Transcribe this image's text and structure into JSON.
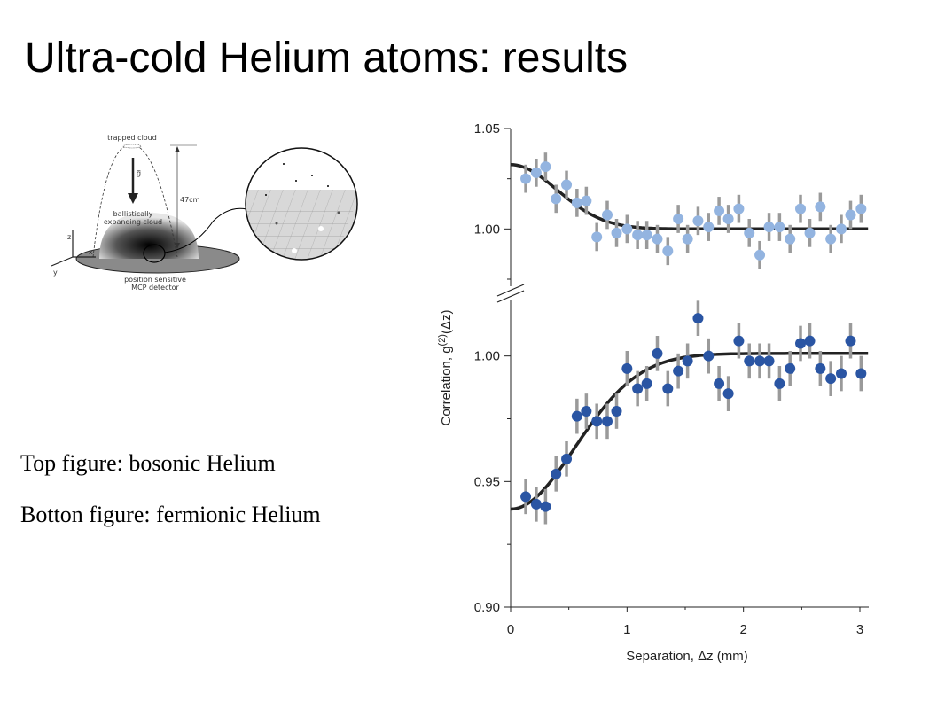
{
  "slide": {
    "title": "Ultra-cold Helium atoms: results",
    "caption_top": "Top figure: bosonic Helium",
    "caption_bottom": "Botton figure: fermionic Helium"
  },
  "diagram": {
    "labels": {
      "trapped": "trapped cloud",
      "gravity": "g̅",
      "height": "47cm",
      "ballistic1": "ballistically",
      "ballistic2": "expanding cloud",
      "detector1": "position sensitive",
      "detector2": "MCP detector",
      "z": "z",
      "x": "x",
      "y": "y"
    }
  },
  "chart_data": {
    "type": "scatter",
    "xlabel": "Separation, Δz (mm)",
    "ylabel": "Correlation, g(2)(Δz)",
    "ylabel_parts": {
      "main": "Correlation, g",
      "sup": "(2)",
      "tail": "(Δz)"
    },
    "xlim": [
      0,
      3.07
    ],
    "x_ticks": [
      0,
      1,
      2,
      3
    ],
    "x_tick_labels": [
      "0",
      "1",
      "2",
      "3"
    ],
    "colors": {
      "bosonic": "#93b4e0",
      "fermionic": "#2a55a3",
      "error_bar": "#9a9a9a",
      "fit": "#222222"
    },
    "series": [
      {
        "ylim": [
          0.975,
          1.05
        ],
        "y_ticks": [
          1.0,
          1.05
        ],
        "y_tick_labels": [
          "1.00",
          "1.05"
        ],
        "points": [
          {
            "x": 0.13,
            "y": 1.025,
            "err": 0.007
          },
          {
            "x": 0.22,
            "y": 1.028,
            "err": 0.007
          },
          {
            "x": 0.3,
            "y": 1.031,
            "err": 0.007
          },
          {
            "x": 0.39,
            "y": 1.015,
            "err": 0.007
          },
          {
            "x": 0.48,
            "y": 1.022,
            "err": 0.007
          },
          {
            "x": 0.57,
            "y": 1.013,
            "err": 0.007
          },
          {
            "x": 0.65,
            "y": 1.014,
            "err": 0.007
          },
          {
            "x": 0.74,
            "y": 0.996,
            "err": 0.007
          },
          {
            "x": 0.83,
            "y": 1.007,
            "err": 0.007
          },
          {
            "x": 0.91,
            "y": 0.998,
            "err": 0.007
          },
          {
            "x": 1.0,
            "y": 1.0,
            "err": 0.007
          },
          {
            "x": 1.09,
            "y": 0.997,
            "err": 0.007
          },
          {
            "x": 1.17,
            "y": 0.997,
            "err": 0.007
          },
          {
            "x": 1.26,
            "y": 0.995,
            "err": 0.007
          },
          {
            "x": 1.35,
            "y": 0.989,
            "err": 0.007
          },
          {
            "x": 1.44,
            "y": 1.005,
            "err": 0.007
          },
          {
            "x": 1.52,
            "y": 0.995,
            "err": 0.007
          },
          {
            "x": 1.61,
            "y": 1.004,
            "err": 0.007
          },
          {
            "x": 1.7,
            "y": 1.001,
            "err": 0.007
          },
          {
            "x": 1.79,
            "y": 1.009,
            "err": 0.007
          },
          {
            "x": 1.87,
            "y": 1.005,
            "err": 0.007
          },
          {
            "x": 1.96,
            "y": 1.01,
            "err": 0.007
          },
          {
            "x": 2.05,
            "y": 0.998,
            "err": 0.007
          },
          {
            "x": 2.14,
            "y": 0.987,
            "err": 0.007
          },
          {
            "x": 2.22,
            "y": 1.001,
            "err": 0.007
          },
          {
            "x": 2.31,
            "y": 1.001,
            "err": 0.007
          },
          {
            "x": 2.4,
            "y": 0.995,
            "err": 0.007
          },
          {
            "x": 2.49,
            "y": 1.01,
            "err": 0.007
          },
          {
            "x": 2.57,
            "y": 0.998,
            "err": 0.007
          },
          {
            "x": 2.66,
            "y": 1.011,
            "err": 0.007
          },
          {
            "x": 2.75,
            "y": 0.995,
            "err": 0.007
          },
          {
            "x": 2.84,
            "y": 1.0,
            "err": 0.007
          },
          {
            "x": 2.92,
            "y": 1.007,
            "err": 0.007
          },
          {
            "x": 3.01,
            "y": 1.01,
            "err": 0.007
          }
        ],
        "fit": {
          "baseline": 1.0,
          "amplitude": 0.032,
          "width": 0.4
        }
      },
      {
        "ylim": [
          0.9,
          1.02
        ],
        "y_ticks": [
          0.9,
          0.95,
          1.0
        ],
        "y_tick_labels": [
          "0.90",
          "0.95",
          "1.00"
        ],
        "points": [
          {
            "x": 0.13,
            "y": 0.944,
            "err": 0.007
          },
          {
            "x": 0.22,
            "y": 0.941,
            "err": 0.007
          },
          {
            "x": 0.3,
            "y": 0.94,
            "err": 0.007
          },
          {
            "x": 0.39,
            "y": 0.953,
            "err": 0.007
          },
          {
            "x": 0.48,
            "y": 0.959,
            "err": 0.007
          },
          {
            "x": 0.57,
            "y": 0.976,
            "err": 0.007
          },
          {
            "x": 0.65,
            "y": 0.978,
            "err": 0.007
          },
          {
            "x": 0.74,
            "y": 0.974,
            "err": 0.007
          },
          {
            "x": 0.83,
            "y": 0.974,
            "err": 0.007
          },
          {
            "x": 0.91,
            "y": 0.978,
            "err": 0.007
          },
          {
            "x": 1.0,
            "y": 0.995,
            "err": 0.007
          },
          {
            "x": 1.09,
            "y": 0.987,
            "err": 0.007
          },
          {
            "x": 1.17,
            "y": 0.989,
            "err": 0.007
          },
          {
            "x": 1.26,
            "y": 1.001,
            "err": 0.007
          },
          {
            "x": 1.35,
            "y": 0.987,
            "err": 0.007
          },
          {
            "x": 1.44,
            "y": 0.994,
            "err": 0.007
          },
          {
            "x": 1.52,
            "y": 0.998,
            "err": 0.007
          },
          {
            "x": 1.61,
            "y": 1.015,
            "err": 0.007
          },
          {
            "x": 1.7,
            "y": 1.0,
            "err": 0.007
          },
          {
            "x": 1.79,
            "y": 0.989,
            "err": 0.007
          },
          {
            "x": 1.87,
            "y": 0.985,
            "err": 0.007
          },
          {
            "x": 1.96,
            "y": 1.006,
            "err": 0.007
          },
          {
            "x": 2.05,
            "y": 0.998,
            "err": 0.007
          },
          {
            "x": 2.14,
            "y": 0.998,
            "err": 0.007
          },
          {
            "x": 2.22,
            "y": 0.998,
            "err": 0.007
          },
          {
            "x": 2.31,
            "y": 0.989,
            "err": 0.007
          },
          {
            "x": 2.4,
            "y": 0.995,
            "err": 0.007
          },
          {
            "x": 2.49,
            "y": 1.005,
            "err": 0.007
          },
          {
            "x": 2.57,
            "y": 1.006,
            "err": 0.007
          },
          {
            "x": 2.66,
            "y": 0.995,
            "err": 0.007
          },
          {
            "x": 2.75,
            "y": 0.991,
            "err": 0.007
          },
          {
            "x": 2.84,
            "y": 0.993,
            "err": 0.007
          },
          {
            "x": 2.92,
            "y": 1.006,
            "err": 0.007
          },
          {
            "x": 3.01,
            "y": 0.993,
            "err": 0.007
          }
        ],
        "fit": {
          "baseline": 1.001,
          "amplitude": -0.062,
          "width": 0.55
        }
      }
    ]
  }
}
